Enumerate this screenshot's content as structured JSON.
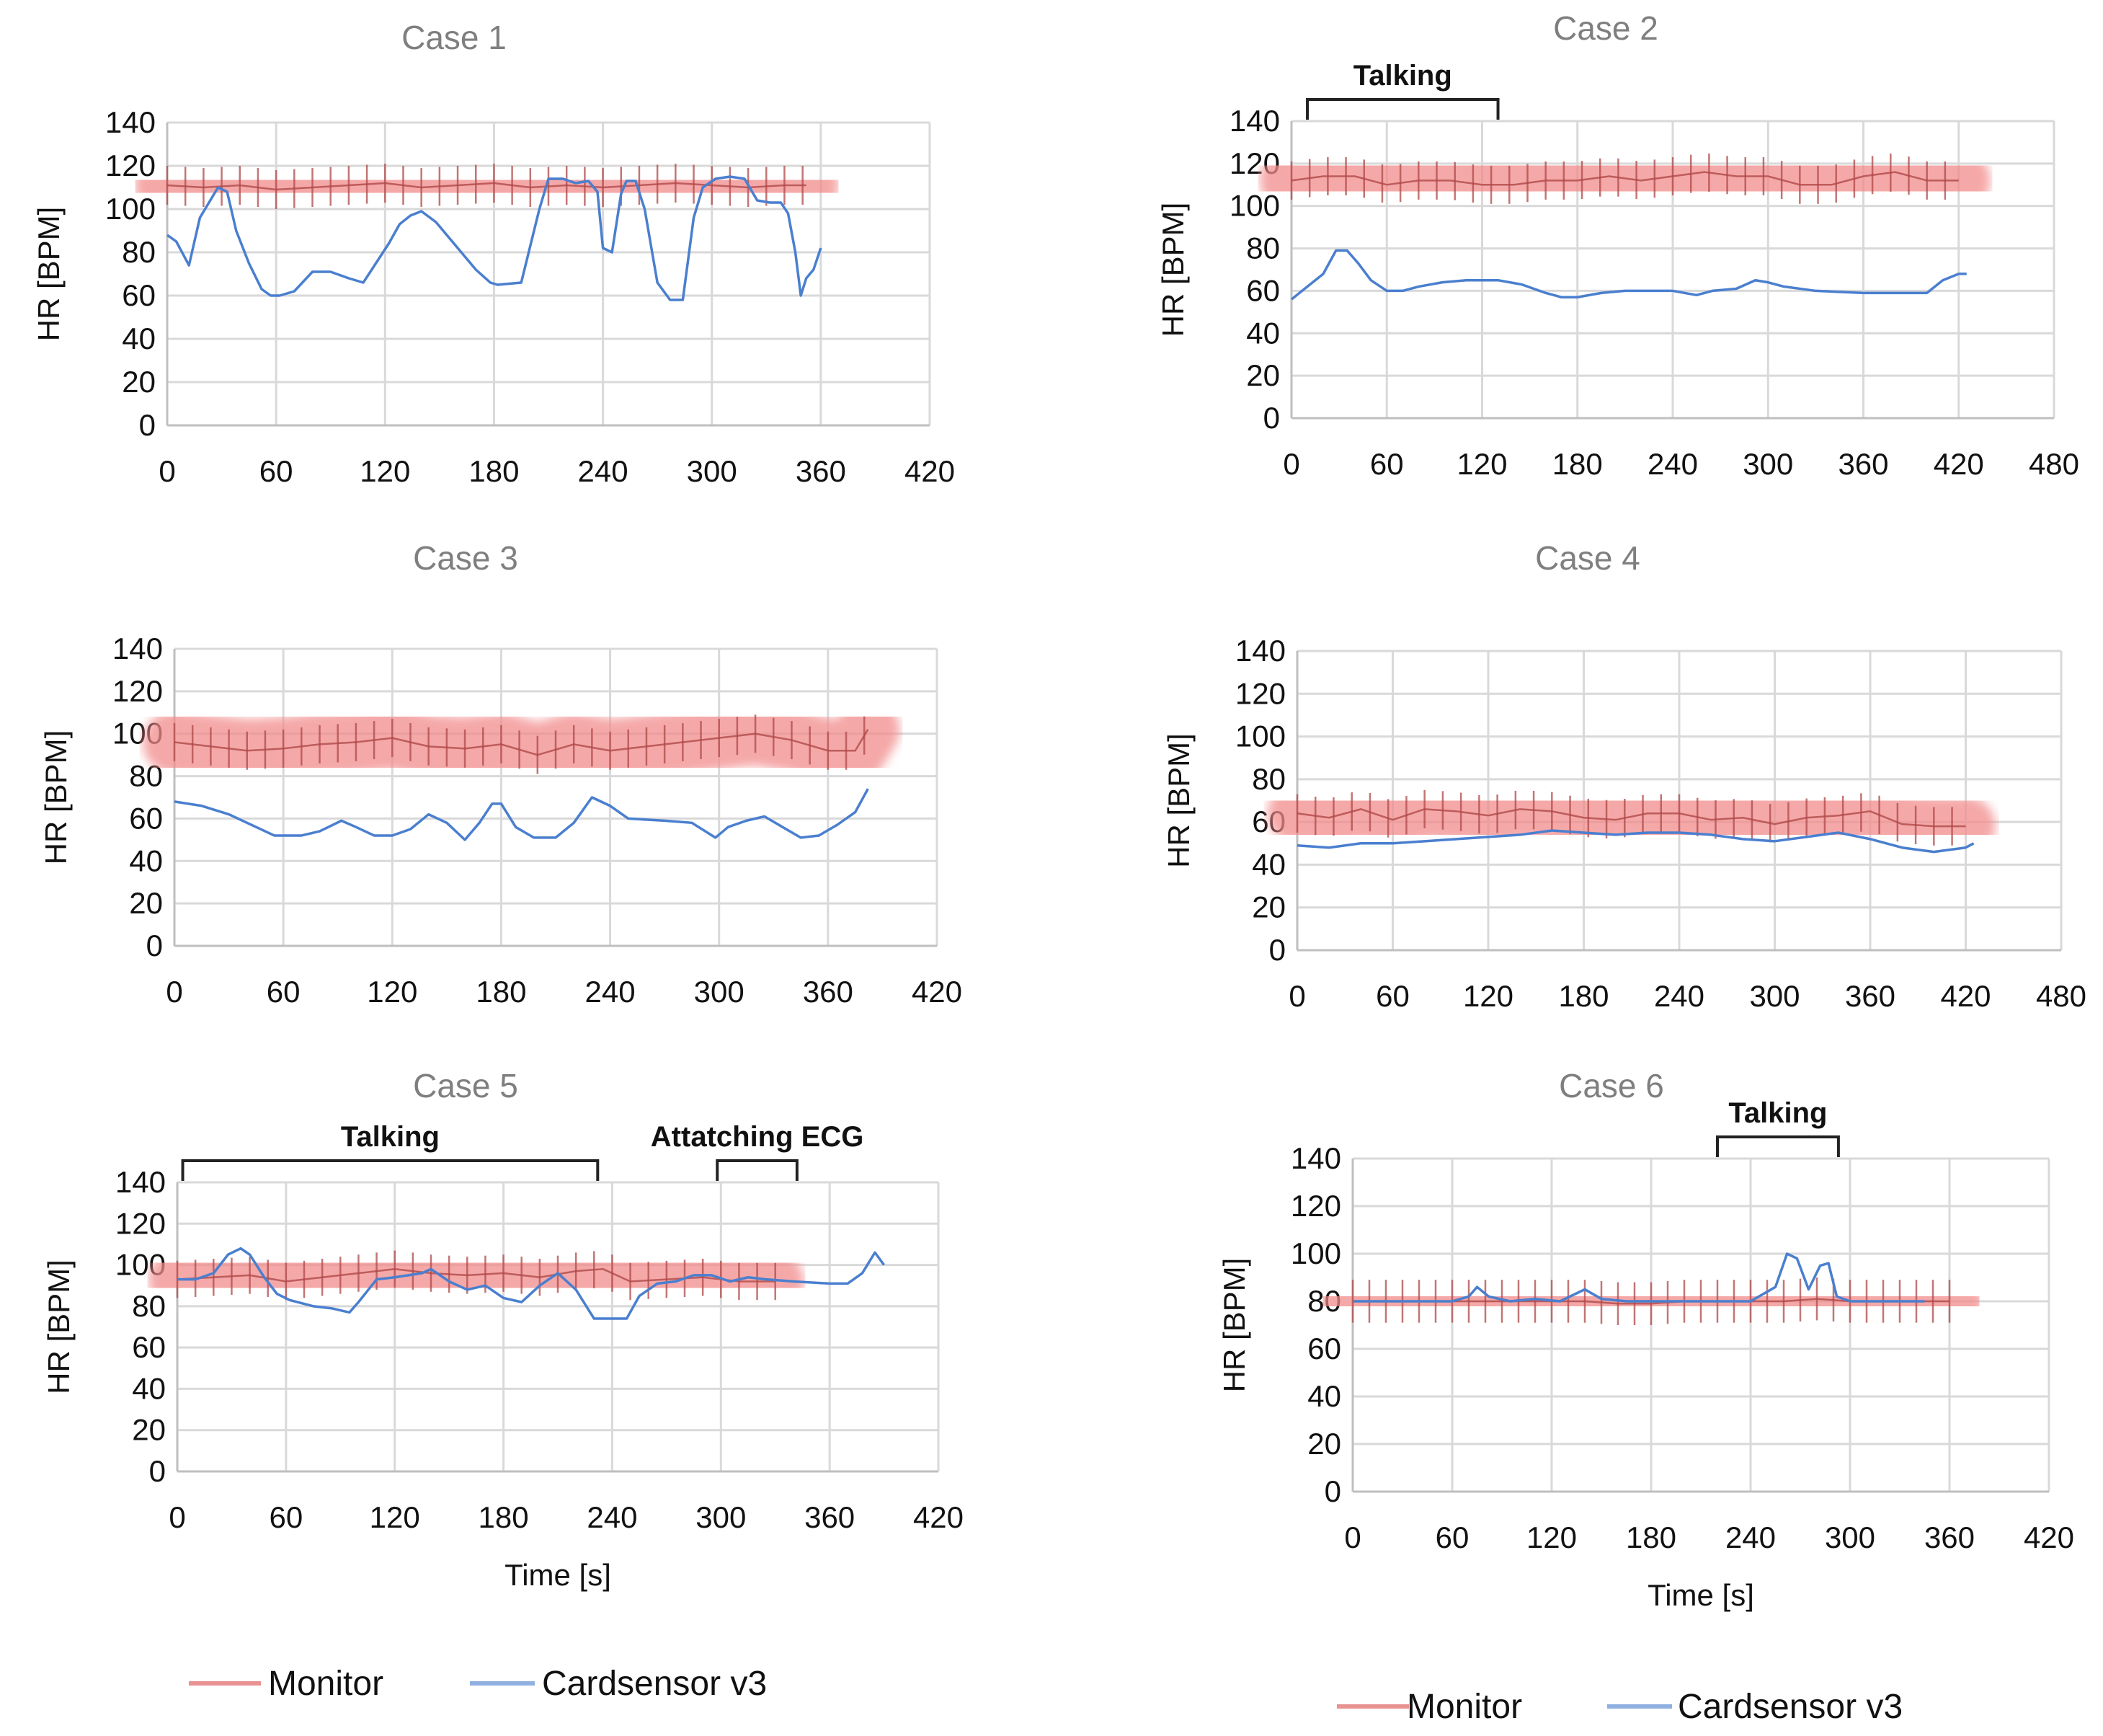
{
  "chart_data": [
    {
      "type": "line",
      "title": "Case 1",
      "xlabel": "",
      "ylabel": "HR [BPM]",
      "xlim": [
        0,
        420
      ],
      "ylim": [
        0,
        140
      ],
      "xticks": [
        0,
        60,
        120,
        180,
        240,
        300,
        360,
        420
      ],
      "yticks": [
        0,
        20,
        40,
        60,
        80,
        100,
        120,
        140
      ],
      "grid": true,
      "annotations": [],
      "series": [
        {
          "name": "Monitor",
          "color": "#f07878",
          "band": 30,
          "x": [
            0,
            20,
            40,
            60,
            80,
            100,
            120,
            140,
            160,
            180,
            200,
            220,
            240,
            260,
            280,
            300,
            320,
            340,
            352
          ],
          "y": [
            111,
            110,
            111,
            109,
            110,
            111,
            112,
            110,
            111,
            112,
            110,
            111,
            110,
            111,
            112,
            111,
            110,
            111,
            111
          ]
        },
        {
          "name": "Cardsensor v3",
          "color": "#4a7fcf",
          "x": [
            0,
            5,
            12,
            18,
            28,
            33,
            38,
            45,
            52,
            57,
            62,
            70,
            80,
            90,
            100,
            108,
            115,
            122,
            128,
            134,
            140,
            148,
            160,
            170,
            178,
            182,
            195,
            205,
            210,
            218,
            225,
            232,
            237,
            240,
            245,
            250,
            253,
            258,
            263,
            270,
            277,
            284,
            290,
            295,
            302,
            310,
            318,
            325,
            332,
            338,
            342,
            346,
            349,
            352,
            356,
            360
          ],
          "y": [
            88,
            85,
            74,
            96,
            110,
            108,
            90,
            75,
            63,
            60,
            60,
            62,
            71,
            71,
            68,
            66,
            75,
            84,
            93,
            97,
            99,
            94,
            82,
            72,
            66,
            65,
            66,
            100,
            114,
            114,
            112,
            113,
            108,
            82,
            80,
            107,
            113,
            113,
            100,
            66,
            58,
            58,
            96,
            110,
            114,
            115,
            114,
            104,
            103,
            103,
            98,
            80,
            60,
            68,
            72,
            82
          ]
        }
      ]
    },
    {
      "type": "line",
      "title": "Case 2",
      "xlabel": "",
      "ylabel": "HR [BPM]",
      "xlim": [
        0,
        480
      ],
      "ylim": [
        0,
        140
      ],
      "xticks": [
        0,
        60,
        120,
        180,
        240,
        300,
        360,
        420,
        480
      ],
      "yticks": [
        0,
        20,
        40,
        60,
        80,
        100,
        120,
        140
      ],
      "grid": true,
      "annotations": [
        {
          "label": "Talking",
          "x0": 10,
          "x1": 130
        }
      ],
      "series": [
        {
          "name": "Monitor",
          "color": "#f07878",
          "band": 30,
          "x": [
            0,
            20,
            40,
            60,
            80,
            100,
            120,
            140,
            160,
            180,
            200,
            220,
            240,
            260,
            280,
            300,
            320,
            340,
            360,
            380,
            400,
            420
          ],
          "y": [
            112,
            114,
            114,
            110,
            112,
            112,
            110,
            110,
            112,
            112,
            114,
            112,
            114,
            116,
            114,
            114,
            110,
            110,
            114,
            116,
            112,
            112
          ]
        },
        {
          "name": "Cardsensor v3",
          "color": "#4a7fcf",
          "x": [
            0,
            10,
            20,
            28,
            35,
            42,
            50,
            60,
            70,
            80,
            95,
            110,
            130,
            145,
            160,
            170,
            180,
            195,
            210,
            240,
            255,
            265,
            280,
            292,
            300,
            310,
            330,
            360,
            400,
            410,
            420,
            425
          ],
          "y": [
            56,
            62,
            68,
            79,
            79,
            73,
            65,
            60,
            60,
            62,
            64,
            65,
            65,
            63,
            59,
            57,
            57,
            59,
            60,
            60,
            58,
            60,
            61,
            65,
            64,
            62,
            60,
            59,
            59,
            65,
            68,
            68
          ]
        }
      ]
    },
    {
      "type": "line",
      "title": "Case 3",
      "xlabel": "",
      "ylabel": "HR [BPM]",
      "xlim": [
        0,
        420
      ],
      "ylim": [
        0,
        140
      ],
      "xticks": [
        0,
        60,
        120,
        180,
        240,
        300,
        360,
        420
      ],
      "yticks": [
        0,
        20,
        40,
        60,
        80,
        100,
        120,
        140
      ],
      "grid": true,
      "annotations": [],
      "series": [
        {
          "name": "Monitor",
          "color": "#f07878",
          "band": 30,
          "x": [
            0,
            20,
            40,
            60,
            80,
            100,
            120,
            140,
            160,
            180,
            200,
            220,
            240,
            260,
            280,
            300,
            320,
            340,
            360,
            375,
            382
          ],
          "y": [
            96,
            94,
            92,
            93,
            95,
            96,
            98,
            94,
            93,
            95,
            90,
            95,
            92,
            94,
            96,
            98,
            100,
            97,
            92,
            92,
            102
          ]
        },
        {
          "name": "Cardsensor v3",
          "color": "#4a7fcf",
          "x": [
            0,
            15,
            30,
            45,
            55,
            70,
            80,
            92,
            100,
            110,
            120,
            130,
            140,
            150,
            160,
            168,
            175,
            180,
            188,
            198,
            210,
            220,
            230,
            240,
            250,
            270,
            285,
            298,
            305,
            315,
            325,
            335,
            345,
            355,
            365,
            375,
            382
          ],
          "y": [
            68,
            66,
            62,
            56,
            52,
            52,
            54,
            59,
            56,
            52,
            52,
            55,
            62,
            58,
            50,
            58,
            67,
            67,
            56,
            51,
            51,
            58,
            70,
            66,
            60,
            59,
            58,
            51,
            56,
            59,
            61,
            56,
            51,
            52,
            57,
            63,
            74
          ]
        }
      ]
    },
    {
      "type": "line",
      "title": "Case 4",
      "xlabel": "",
      "ylabel": "HR [BPM]",
      "xlim": [
        0,
        480
      ],
      "ylim": [
        0,
        140
      ],
      "xticks": [
        0,
        60,
        120,
        180,
        240,
        300,
        360,
        420,
        480
      ],
      "yticks": [
        0,
        20,
        40,
        60,
        80,
        100,
        120,
        140
      ],
      "grid": true,
      "annotations": [],
      "series": [
        {
          "name": "Monitor",
          "color": "#f07878",
          "band": 28,
          "x": [
            0,
            20,
            40,
            60,
            80,
            100,
            120,
            140,
            160,
            180,
            200,
            220,
            240,
            260,
            280,
            300,
            320,
            340,
            360,
            380,
            400,
            420
          ],
          "y": [
            64,
            62,
            66,
            61,
            66,
            65,
            63,
            66,
            65,
            62,
            61,
            64,
            64,
            61,
            62,
            59,
            62,
            63,
            65,
            59,
            58,
            58
          ]
        },
        {
          "name": "Cardsensor v3",
          "color": "#4a7fcf",
          "x": [
            0,
            20,
            40,
            60,
            80,
            100,
            120,
            140,
            160,
            180,
            200,
            220,
            240,
            260,
            280,
            300,
            320,
            340,
            360,
            380,
            400,
            420,
            425
          ],
          "y": [
            49,
            48,
            50,
            50,
            51,
            52,
            53,
            54,
            56,
            55,
            54,
            55,
            55,
            54,
            52,
            51,
            53,
            55,
            52,
            48,
            46,
            48,
            50
          ]
        }
      ]
    },
    {
      "type": "line",
      "title": "Case 5",
      "xlabel": "Time [s]",
      "ylabel": "HR [BPM]",
      "xlim": [
        0,
        420
      ],
      "ylim": [
        0,
        140
      ],
      "xticks": [
        0,
        60,
        120,
        180,
        240,
        300,
        360,
        420
      ],
      "yticks": [
        0,
        20,
        40,
        60,
        80,
        100,
        120,
        140
      ],
      "grid": true,
      "annotations": [
        {
          "label": "Talking",
          "x0": 3,
          "x1": 232
        },
        {
          "label": "Attatching ECG",
          "x0": 298,
          "x1": 342
        }
      ],
      "series": [
        {
          "name": "Monitor",
          "color": "#f07878",
          "band": 28,
          "x": [
            0,
            20,
            40,
            60,
            80,
            100,
            120,
            140,
            160,
            180,
            200,
            220,
            235,
            250,
            270,
            290,
            310,
            330
          ],
          "y": [
            93,
            94,
            95,
            92,
            94,
            96,
            98,
            96,
            95,
            96,
            94,
            97,
            98,
            92,
            93,
            94,
            92,
            92
          ]
        },
        {
          "name": "Cardsensor v3",
          "color": "#4a7fcf",
          "x": [
            0,
            10,
            20,
            28,
            35,
            40,
            48,
            55,
            62,
            75,
            85,
            95,
            100,
            110,
            120,
            135,
            140,
            150,
            160,
            170,
            180,
            190,
            200,
            210,
            220,
            230,
            240,
            248,
            255,
            265,
            275,
            285,
            295,
            305,
            315,
            325,
            340,
            360,
            370,
            378,
            385,
            390
          ],
          "y": [
            93,
            93,
            96,
            105,
            108,
            105,
            94,
            86,
            83,
            80,
            79,
            77,
            82,
            93,
            94,
            96,
            98,
            92,
            88,
            90,
            84,
            82,
            90,
            96,
            88,
            74,
            74,
            74,
            85,
            91,
            92,
            95,
            95,
            92,
            94,
            93,
            92,
            91,
            91,
            96,
            106,
            100
          ]
        }
      ]
    },
    {
      "type": "line",
      "title": "Case 6",
      "xlabel": "Time [s]",
      "ylabel": "HR [BPM]",
      "xlim": [
        0,
        420
      ],
      "ylim": [
        0,
        140
      ],
      "xticks": [
        0,
        60,
        120,
        180,
        240,
        300,
        360,
        420
      ],
      "yticks": [
        0,
        20,
        40,
        60,
        80,
        100,
        120,
        140
      ],
      "grid": true,
      "annotations": [
        {
          "label": "Talking",
          "x0": 220,
          "x1": 293
        }
      ],
      "series": [
        {
          "name": "Monitor",
          "color": "#f07878",
          "band": 28,
          "x": [
            0,
            20,
            40,
            60,
            80,
            100,
            120,
            140,
            160,
            180,
            200,
            220,
            240,
            260,
            280,
            300,
            320,
            340,
            360
          ],
          "y": [
            80,
            80,
            80,
            80,
            80,
            80,
            80,
            80,
            79,
            79,
            80,
            80,
            80,
            80,
            81,
            80,
            80,
            80,
            80
          ]
        },
        {
          "name": "Cardsensor v3",
          "color": "#4a7fcf",
          "x": [
            0,
            30,
            60,
            70,
            75,
            82,
            95,
            110,
            125,
            140,
            150,
            165,
            180,
            200,
            220,
            240,
            255,
            262,
            268,
            275,
            282,
            287,
            292,
            300,
            320,
            345
          ],
          "y": [
            80,
            80,
            80,
            82,
            86,
            82,
            80,
            81,
            80,
            85,
            81,
            80,
            80,
            80,
            80,
            80,
            86,
            100,
            98,
            85,
            95,
            96,
            82,
            80,
            80,
            80
          ]
        }
      ]
    }
  ],
  "legends": [
    {
      "items": [
        {
          "label": "Monitor",
          "color": "#e89292"
        },
        {
          "label": "Cardsensor v3",
          "color": "#8fb0e0"
        }
      ]
    },
    {
      "items": [
        {
          "label": "Monitor",
          "color": "#e89292"
        },
        {
          "label": "Cardsensor v3",
          "color": "#8fb0e0"
        }
      ]
    }
  ]
}
